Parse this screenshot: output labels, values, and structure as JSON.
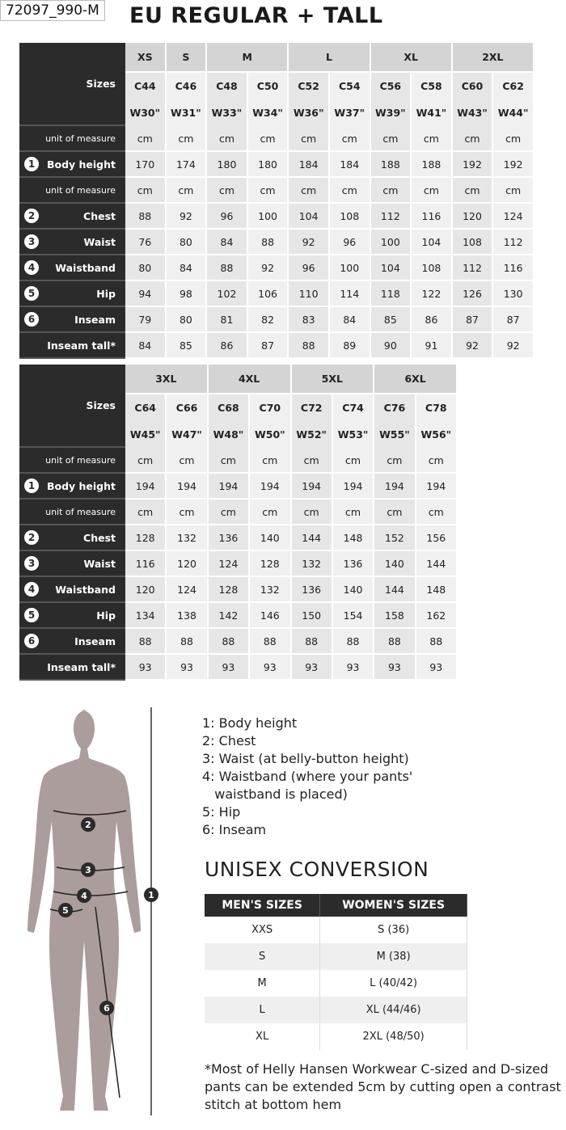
{
  "label": "72097_990-M",
  "title": "EU REGULAR + TALL",
  "tables": [
    {
      "groups": [
        [
          "XS",
          1
        ],
        [
          "S",
          1
        ],
        [
          "M",
          2
        ],
        [
          "L",
          2
        ],
        [
          "XL",
          2
        ],
        [
          "2XL",
          2
        ]
      ],
      "c_codes": [
        "C44",
        "C46",
        "C48",
        "C50",
        "C52",
        "C54",
        "C56",
        "C58",
        "C60",
        "C62"
      ],
      "w_codes": [
        "W30\"",
        "W31\"",
        "W33\"",
        "W34\"",
        "W36\"",
        "W37\"",
        "W39\"",
        "W41\"",
        "W43\"",
        "W44\""
      ],
      "rows": [
        {
          "label": "unit of measure",
          "small": true,
          "values": [
            "cm",
            "cm",
            "cm",
            "cm",
            "cm",
            "cm",
            "cm",
            "cm",
            "cm",
            "cm"
          ]
        },
        {
          "num": "1",
          "label": "Body height",
          "values": [
            "170",
            "174",
            "180",
            "180",
            "184",
            "184",
            "188",
            "188",
            "192",
            "192"
          ]
        },
        {
          "label": "unit of measure",
          "small": true,
          "values": [
            "cm",
            "cm",
            "cm",
            "cm",
            "cm",
            "cm",
            "cm",
            "cm",
            "cm",
            "cm"
          ]
        },
        {
          "num": "2",
          "label": "Chest",
          "values": [
            "88",
            "92",
            "96",
            "100",
            "104",
            "108",
            "112",
            "116",
            "120",
            "124"
          ]
        },
        {
          "num": "3",
          "label": "Waist",
          "values": [
            "76",
            "80",
            "84",
            "88",
            "92",
            "96",
            "100",
            "104",
            "108",
            "112"
          ]
        },
        {
          "num": "4",
          "label": "Waistband",
          "values": [
            "80",
            "84",
            "88",
            "92",
            "96",
            "100",
            "104",
            "108",
            "112",
            "116"
          ]
        },
        {
          "num": "5",
          "label": "Hip",
          "values": [
            "94",
            "98",
            "102",
            "106",
            "110",
            "114",
            "118",
            "122",
            "126",
            "130"
          ]
        },
        {
          "num": "6",
          "label": "Inseam",
          "values": [
            "79",
            "80",
            "81",
            "82",
            "83",
            "84",
            "85",
            "86",
            "87",
            "87"
          ]
        },
        {
          "label": "Inseam tall*",
          "values": [
            "84",
            "85",
            "86",
            "87",
            "88",
            "89",
            "90",
            "91",
            "92",
            "92"
          ]
        }
      ]
    },
    {
      "groups": [
        [
          "3XL",
          2
        ],
        [
          "4XL",
          2
        ],
        [
          "5XL",
          2
        ],
        [
          "6XL",
          2
        ]
      ],
      "c_codes": [
        "C64",
        "C66",
        "C68",
        "C70",
        "C72",
        "C74",
        "C76",
        "C78"
      ],
      "w_codes": [
        "W45\"",
        "W47\"",
        "W48\"",
        "W50\"",
        "W52\"",
        "W53\"",
        "W55\"",
        "W56\""
      ],
      "rows": [
        {
          "label": "unit of measure",
          "small": true,
          "values": [
            "cm",
            "cm",
            "cm",
            "cm",
            "cm",
            "cm",
            "cm",
            "cm"
          ]
        },
        {
          "num": "1",
          "label": "Body height",
          "values": [
            "194",
            "194",
            "194",
            "194",
            "194",
            "194",
            "194",
            "194"
          ]
        },
        {
          "label": "unit of measure",
          "small": true,
          "values": [
            "cm",
            "cm",
            "cm",
            "cm",
            "cm",
            "cm",
            "cm",
            "cm"
          ]
        },
        {
          "num": "2",
          "label": "Chest",
          "values": [
            "128",
            "132",
            "136",
            "140",
            "144",
            "148",
            "152",
            "156"
          ]
        },
        {
          "num": "3",
          "label": "Waist",
          "values": [
            "116",
            "120",
            "124",
            "128",
            "132",
            "136",
            "140",
            "144"
          ]
        },
        {
          "num": "4",
          "label": "Waistband",
          "values": [
            "120",
            "124",
            "128",
            "132",
            "136",
            "140",
            "144",
            "148"
          ]
        },
        {
          "num": "5",
          "label": "Hip",
          "values": [
            "134",
            "138",
            "142",
            "146",
            "150",
            "154",
            "158",
            "162"
          ]
        },
        {
          "num": "6",
          "label": "Inseam",
          "values": [
            "88",
            "88",
            "88",
            "88",
            "88",
            "88",
            "88",
            "88"
          ]
        },
        {
          "label": "Inseam tall*",
          "values": [
            "93",
            "93",
            "93",
            "93",
            "93",
            "93",
            "93",
            "93"
          ]
        }
      ]
    }
  ],
  "sizes_label": "Sizes",
  "legend": [
    "1: Body height",
    "2: Chest",
    "3: Waist (at belly-button height)",
    "4: Waistband (where your pants'\n   waistband is placed)",
    "5: Hip",
    "6: Inseam"
  ],
  "unisex": {
    "title": "UNISEX CONVERSION",
    "headers": [
      "MEN'S SIZES",
      "WOMEN'S SIZES"
    ],
    "rows": [
      [
        "XXS",
        "S (36)"
      ],
      [
        "S",
        "M (38)"
      ],
      [
        "M",
        "L (40/42)"
      ],
      [
        "L",
        "XL (44/46)"
      ],
      [
        "XL",
        "2XL (48/50)"
      ]
    ]
  },
  "figure_markers": [
    "1",
    "2",
    "3",
    "4",
    "5",
    "6"
  ],
  "note": "*Most of Helly Hansen Workwear C-sized and D-sized pants can be extended 5cm by cutting open a contrast stitch at bottom hem"
}
